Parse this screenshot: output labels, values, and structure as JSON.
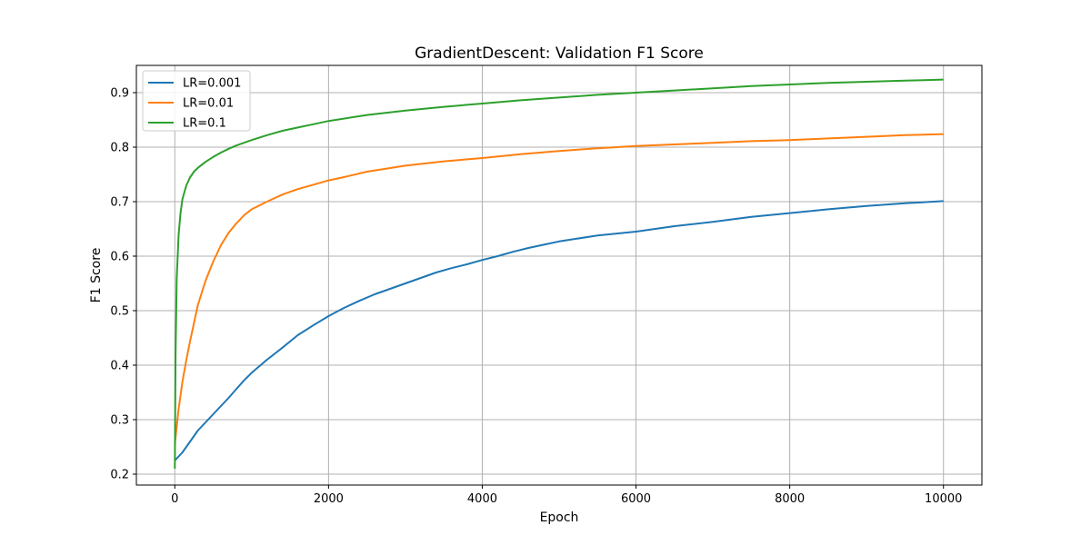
{
  "chart_data": {
    "type": "line",
    "title": "GradientDescent: Validation F1 Score",
    "xlabel": "Epoch",
    "ylabel": "F1 Score",
    "xlim": [
      -500,
      10500
    ],
    "ylim": [
      0.18,
      0.95
    ],
    "xticks": [
      0,
      2000,
      4000,
      6000,
      8000,
      10000
    ],
    "yticks": [
      0.2,
      0.3,
      0.4,
      0.5,
      0.6,
      0.7,
      0.8,
      0.9
    ],
    "grid": true,
    "legend_position": "upper-left",
    "series": [
      {
        "name": "LR=0.001",
        "color": "#1f77b4",
        "x": [
          0,
          100,
          200,
          300,
          400,
          500,
          600,
          700,
          800,
          900,
          1000,
          1200,
          1400,
          1600,
          1800,
          2000,
          2200,
          2400,
          2600,
          2800,
          3000,
          3200,
          3400,
          3600,
          3800,
          4000,
          4200,
          4400,
          4600,
          4800,
          5000,
          5500,
          6000,
          6500,
          7000,
          7500,
          8000,
          8500,
          9000,
          9500,
          10000
        ],
        "y": [
          0.225,
          0.24,
          0.26,
          0.28,
          0.295,
          0.31,
          0.325,
          0.34,
          0.356,
          0.372,
          0.386,
          0.41,
          0.432,
          0.455,
          0.473,
          0.49,
          0.505,
          0.518,
          0.53,
          0.54,
          0.55,
          0.56,
          0.57,
          0.578,
          0.585,
          0.593,
          0.6,
          0.608,
          0.615,
          0.621,
          0.627,
          0.638,
          0.645,
          0.655,
          0.663,
          0.672,
          0.679,
          0.686,
          0.692,
          0.697,
          0.701
        ]
      },
      {
        "name": "LR=0.01",
        "color": "#ff7f0e",
        "x": [
          0,
          50,
          100,
          150,
          200,
          300,
          400,
          500,
          600,
          700,
          800,
          900,
          1000,
          1200,
          1400,
          1600,
          1800,
          2000,
          2200,
          2500,
          3000,
          3500,
          4000,
          4500,
          5000,
          5500,
          6000,
          6500,
          7000,
          7500,
          8000,
          8500,
          9000,
          9500,
          10000
        ],
        "y": [
          0.255,
          0.32,
          0.37,
          0.41,
          0.445,
          0.51,
          0.555,
          0.59,
          0.62,
          0.643,
          0.66,
          0.675,
          0.686,
          0.7,
          0.713,
          0.723,
          0.731,
          0.739,
          0.745,
          0.755,
          0.766,
          0.774,
          0.78,
          0.787,
          0.793,
          0.798,
          0.802,
          0.805,
          0.808,
          0.811,
          0.813,
          0.816,
          0.819,
          0.822,
          0.824
        ]
      },
      {
        "name": "LR=0.1",
        "color": "#2ca02c",
        "x": [
          0,
          10,
          25,
          50,
          75,
          100,
          150,
          200,
          250,
          300,
          400,
          500,
          600,
          700,
          800,
          1000,
          1200,
          1400,
          1600,
          1800,
          2000,
          2500,
          3000,
          3500,
          4000,
          4500,
          5000,
          5500,
          6000,
          6500,
          7000,
          7500,
          8000,
          8500,
          9000,
          9500,
          10000
        ],
        "y": [
          0.21,
          0.42,
          0.56,
          0.64,
          0.68,
          0.705,
          0.73,
          0.745,
          0.755,
          0.762,
          0.773,
          0.782,
          0.79,
          0.797,
          0.803,
          0.813,
          0.822,
          0.83,
          0.836,
          0.842,
          0.848,
          0.859,
          0.867,
          0.874,
          0.88,
          0.886,
          0.891,
          0.896,
          0.9,
          0.904,
          0.908,
          0.912,
          0.915,
          0.918,
          0.92,
          0.922,
          0.924
        ]
      }
    ]
  }
}
